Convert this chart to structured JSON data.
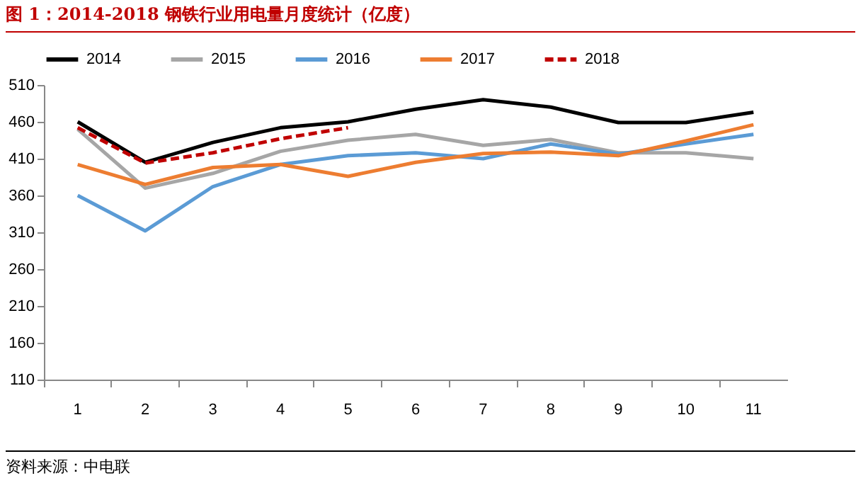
{
  "chart_data": {
    "type": "line",
    "title": "图 1：2014-2018 钢铁行业用电量月度统计（亿度）",
    "annotations": [
      "资料来源：中电联"
    ],
    "categories": [
      "1",
      "2",
      "3",
      "4",
      "5",
      "6",
      "7",
      "8",
      "9",
      "10",
      "11"
    ],
    "series": [
      {
        "name": "2014",
        "color": "#000000",
        "values": [
          460,
          405,
          432,
          452,
          460,
          477,
          490,
          480,
          459,
          459,
          473
        ]
      },
      {
        "name": "2015",
        "color": "#a6a6a6",
        "values": [
          450,
          370,
          390,
          420,
          435,
          443,
          428,
          436,
          418,
          418,
          410
        ]
      },
      {
        "name": "2016",
        "color": "#5b9bd5",
        "values": [
          360,
          312,
          372,
          402,
          414,
          418,
          410,
          430,
          416,
          430,
          443
        ]
      },
      {
        "name": "2017",
        "color": "#ed7d31",
        "values": [
          402,
          375,
          398,
          402,
          386,
          405,
          417,
          419,
          414,
          434,
          456
        ]
      },
      {
        "name": "2018",
        "color": "#c00000",
        "line_style": "dashed",
        "values": [
          452,
          404,
          418,
          437,
          452,
          null,
          null,
          null,
          null,
          null,
          null
        ]
      }
    ],
    "ylim": [
      110,
      510
    ],
    "yticks": [
      110,
      160,
      210,
      260,
      310,
      360,
      410,
      460,
      510
    ],
    "grid": false,
    "legend": "top",
    "marker": "none"
  }
}
